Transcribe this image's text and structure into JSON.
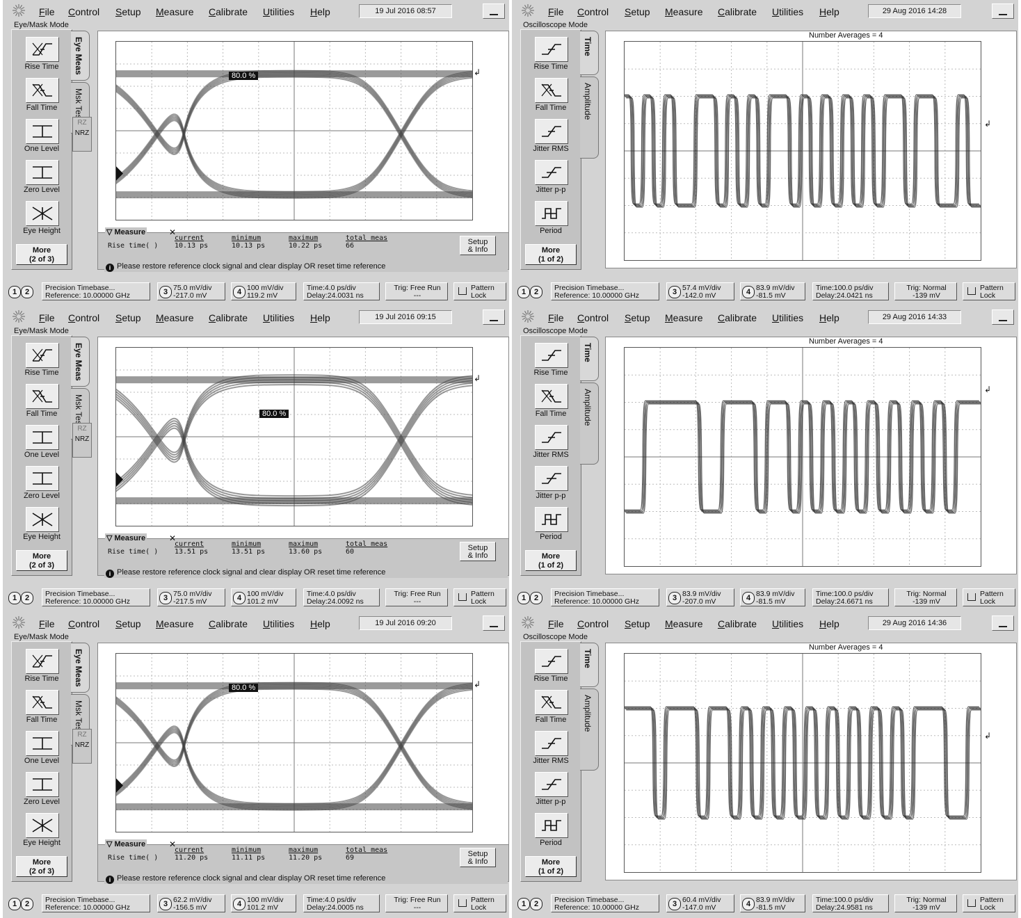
{
  "menu": [
    "File",
    "Control",
    "Setup",
    "Measure",
    "Calibrate",
    "Utilities",
    "Help"
  ],
  "eye_buttons": [
    "Rise Time",
    "Fall Time",
    "One Level",
    "Zero Level",
    "Eye Height"
  ],
  "osc_buttons": [
    "Rise Time",
    "Fall Time",
    "Jitter RMS",
    "Jitter p-p",
    "Period"
  ],
  "eye_tabs": [
    "Eye Meas",
    "Msk Test"
  ],
  "osc_tabs": [
    "Time",
    "Amplitude"
  ],
  "rz": "RZ",
  "nrz": "NRZ",
  "measure_headers": [
    "current",
    "minimum",
    "maximum",
    "total meas"
  ],
  "measure_title": "Measure",
  "measure_row_label": "Rise time( )",
  "setup_info": [
    "Setup",
    "& Info"
  ],
  "status_message": "Please restore reference clock signal and clear display OR reset time reference",
  "pattern_lock": [
    "Pattern",
    "Lock"
  ],
  "num_avg": "Number Averages =   4",
  "eye_mode": "Eye/Mask Mode",
  "osc_mode": "Oscilloscope Mode",
  "eye_panels": [
    {
      "datetime": "19 Jul 2016   08:57",
      "more": [
        "More",
        "(2 of 3)"
      ],
      "eye_pct": "80.0 %",
      "current": "10.13 ps",
      "minimum": "10.13 ps",
      "maximum": "10.22 ps",
      "total": "66",
      "timebase": [
        "Precision Timebase...",
        "Reference: 10.00000 GHz"
      ],
      "ch3": [
        "75.0 mV/div",
        "-217.0 mV"
      ],
      "ch4": [
        "100 mV/div",
        "119.2 mV"
      ],
      "time": [
        "Time:4.0 ps/div",
        "Delay:24.0031 ns"
      ],
      "trig": [
        "Trig: Free Run",
        "---"
      ]
    },
    {
      "datetime": "19 Jul 2016   09:15",
      "more": [
        "More",
        "(2 of 3)"
      ],
      "eye_pct": "80.0 %",
      "current": "13.51 ps",
      "minimum": "13.51 ps",
      "maximum": "13.60 ps",
      "total": "60",
      "timebase": [
        "Precision Timebase...",
        "Reference: 10.00000 GHz"
      ],
      "ch3": [
        "75.0 mV/div",
        "-217.5 mV"
      ],
      "ch4": [
        "100 mV/div",
        "101.2 mV"
      ],
      "time": [
        "Time:4.0 ps/div",
        "Delay:24.0092 ns"
      ],
      "trig": [
        "Trig: Free Run",
        "---"
      ]
    },
    {
      "datetime": "19 Jul 2016   09:20",
      "more": [
        "More",
        "(2 of 3)"
      ],
      "eye_pct": "80.0 %",
      "current": "11.20 ps",
      "minimum": "11.11 ps",
      "maximum": "11.20 ps",
      "total": "69",
      "timebase": [
        "Precision Timebase...",
        "Reference: 10.00000 GHz"
      ],
      "ch3": [
        "62.2 mV/div",
        "-156.5 mV"
      ],
      "ch4": [
        "100 mV/div",
        "101.2 mV"
      ],
      "time": [
        "Time:4.0 ps/div",
        "Delay:24.0005 ns"
      ],
      "trig": [
        "Trig: Free Run",
        "---"
      ]
    }
  ],
  "osc_panels": [
    {
      "datetime": "29 Aug 2016   14:28",
      "more": [
        "More",
        "(1 of 2)"
      ],
      "timebase": [
        "Precision Timebase...",
        "Reference: 10.00000 GHz"
      ],
      "ch3": [
        "57.4 mV/div",
        "-142.0 mV"
      ],
      "ch4": [
        "83.9 mV/div",
        "-81.5 mV"
      ],
      "time": [
        "Time:100.0 ps/div",
        "Delay:24.0421 ns"
      ],
      "trig": [
        "Trig: Normal",
        "-139 mV"
      ]
    },
    {
      "datetime": "29 Aug 2016   14:33",
      "more": [
        "More",
        "(1 of 2)"
      ],
      "timebase": [
        "Precision Timebase...",
        "Reference: 10.00000 GHz"
      ],
      "ch3": [
        "83.9 mV/div",
        "-207.0 mV"
      ],
      "ch4": [
        "83.9 mV/div",
        "-81.5 mV"
      ],
      "time": [
        "Time:100.0 ps/div",
        "Delay:24.6671 ns"
      ],
      "trig": [
        "Trig: Normal",
        "-139 mV"
      ]
    },
    {
      "datetime": "29 Aug 2016   14:36",
      "more": [
        "More",
        "(1 of 2)"
      ],
      "timebase": [
        "Precision Timebase...",
        "Reference: 10.00000 GHz"
      ],
      "ch3": [
        "60.4 mV/div",
        "-147.0 mV"
      ],
      "ch4": [
        "83.9 mV/div",
        "-81.5 mV"
      ],
      "time": [
        "Time:100.0 ps/div",
        "Delay:24.9581 ns"
      ],
      "trig": [
        "Trig: Normal",
        "-139 mV"
      ]
    }
  ],
  "waveform_bits": [
    [
      1,
      0,
      1,
      0,
      1,
      0,
      0,
      1,
      1,
      0,
      1,
      0,
      1,
      0,
      1,
      1,
      0,
      1,
      0,
      1,
      0,
      1,
      0,
      1,
      0,
      1,
      1,
      0,
      1,
      1,
      0,
      0,
      1,
      0
    ],
    [
      0,
      0,
      1,
      1,
      1,
      1,
      1,
      0,
      0,
      1,
      1,
      1,
      0,
      1,
      1,
      0,
      1,
      0,
      1,
      0,
      1,
      0,
      1,
      0,
      1,
      0,
      1,
      0,
      1,
      0,
      1,
      1
    ],
    [
      1,
      1,
      1,
      0,
      1,
      1,
      1,
      0,
      1,
      1,
      0,
      1,
      0,
      1,
      0,
      1,
      0,
      1,
      0,
      1,
      0,
      1,
      0,
      1,
      0,
      1,
      0,
      1,
      1,
      1,
      0,
      0,
      1
    ]
  ]
}
